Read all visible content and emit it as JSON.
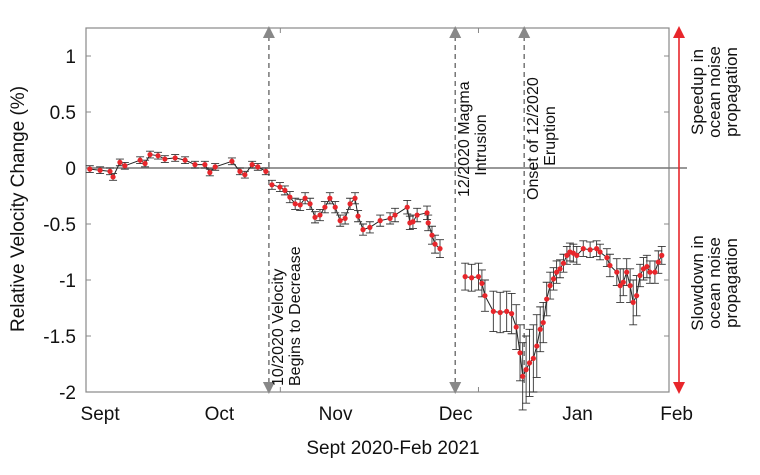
{
  "chart_data": {
    "type": "scatter",
    "title": "",
    "xlabel": "Sept 2020-Feb 2021",
    "ylabel": "Relative Velocity Change (%)",
    "xunit": "days since Sept 1 2020 (approx.)",
    "xlim": [
      0,
      153
    ],
    "ylim": [
      -2,
      1.25
    ],
    "yticks": [
      1,
      0.5,
      0,
      -0.5,
      -1,
      -1.5,
      -2
    ],
    "ytick_labels": [
      "1",
      "0.5",
      "0",
      "-0.5",
      "-1",
      "-1.5",
      "-2"
    ],
    "xticks": [
      {
        "label": "Sept",
        "x": 3.7
      },
      {
        "label": "Oct",
        "x": 35
      },
      {
        "label": "Nov",
        "x": 65.5
      },
      {
        "label": "Dec",
        "x": 97
      },
      {
        "label": "Jan",
        "x": 129
      },
      {
        "label": "Feb",
        "x": 155
      }
    ],
    "series": [
      {
        "name": "Relative velocity change",
        "color": "#e8262b",
        "errorbar_color": "#333333",
        "x": [
          1.0,
          3.7,
          6.3,
          7.1,
          8.9,
          10.2,
          14.2,
          15.5,
          16.8,
          18.9,
          20.7,
          23.4,
          26,
          28.6,
          31.2,
          32.5,
          33.9,
          38.3,
          40.4,
          41.7,
          43.6,
          45.1,
          47.2,
          48.8,
          50.9,
          52.2,
          53.5,
          54.9,
          56.2,
          57.5,
          58.8,
          60.1,
          61.4,
          62.7,
          64.0,
          65.4,
          66.7,
          68,
          69.3,
          70.6,
          71.4,
          72.7,
          74.5,
          77.2,
          79.8,
          81.1,
          84.3,
          85.0,
          85.8,
          86.9,
          89.5,
          89.8,
          90.8,
          91.6,
          92.9,
          99.5,
          101.2,
          103,
          103.9,
          104.7,
          106.9,
          108.7,
          110.4,
          111.7,
          112.9,
          113.9,
          114.6,
          115.5,
          116.4,
          117.4,
          118.3,
          119.2,
          120,
          120.9,
          121.8,
          122.7,
          123.5,
          124.4,
          125.3,
          126.2,
          127,
          127.9,
          128.8,
          130.5,
          132.3,
          134,
          134.9,
          136.7,
          137.5,
          139.3,
          140.2,
          141,
          141.9,
          142.8,
          143.6,
          144.5,
          145.4,
          146.3,
          147.2,
          148,
          149.3,
          150.2,
          151.1
        ],
        "y": [
          -0.01,
          -0.02,
          -0.03,
          -0.08,
          0.05,
          0.02,
          0.07,
          0.04,
          0.12,
          0.11,
          0.08,
          0.09,
          0.07,
          0.03,
          0.03,
          -0.04,
          0.01,
          0.06,
          -0.03,
          -0.06,
          0.03,
          0.01,
          -0.03,
          -0.15,
          -0.17,
          -0.2,
          -0.26,
          -0.32,
          -0.33,
          -0.27,
          -0.32,
          -0.44,
          -0.42,
          -0.35,
          -0.27,
          -0.35,
          -0.47,
          -0.45,
          -0.32,
          -0.27,
          -0.43,
          -0.55,
          -0.53,
          -0.47,
          -0.45,
          -0.42,
          -0.35,
          -0.49,
          -0.48,
          -0.42,
          -0.4,
          -0.49,
          -0.6,
          -0.68,
          -0.72,
          -0.97,
          -0.98,
          -0.97,
          -1.03,
          -1.14,
          -1.28,
          -1.29,
          -1.28,
          -1.3,
          -1.42,
          -1.65,
          -1.86,
          -1.8,
          -1.74,
          -1.7,
          -1.59,
          -1.44,
          -1.38,
          -1.17,
          -1.05,
          -0.99,
          -0.93,
          -0.9,
          -0.85,
          -0.78,
          -0.75,
          -0.76,
          -0.78,
          -0.72,
          -0.73,
          -0.72,
          -0.75,
          -0.8,
          -0.87,
          -0.93,
          -1.05,
          -1.02,
          -0.93,
          -1.05,
          -1.2,
          -1.14,
          -0.96,
          -0.9,
          -0.88,
          -0.93,
          -0.93,
          -0.84,
          -0.78
        ],
        "err": [
          0.03,
          0.03,
          0.03,
          0.03,
          0.03,
          0.03,
          0.03,
          0.03,
          0.03,
          0.03,
          0.03,
          0.03,
          0.03,
          0.03,
          0.03,
          0.03,
          0.03,
          0.03,
          0.03,
          0.03,
          0.03,
          0.03,
          0.03,
          0.04,
          0.04,
          0.04,
          0.05,
          0.05,
          0.05,
          0.05,
          0.05,
          0.05,
          0.05,
          0.05,
          0.05,
          0.05,
          0.05,
          0.05,
          0.05,
          0.05,
          0.05,
          0.05,
          0.05,
          0.05,
          0.05,
          0.06,
          0.06,
          0.06,
          0.06,
          0.06,
          0.06,
          0.07,
          0.08,
          0.08,
          0.08,
          0.12,
          0.12,
          0.12,
          0.12,
          0.14,
          0.18,
          0.18,
          0.18,
          0.18,
          0.2,
          0.25,
          0.3,
          0.3,
          0.3,
          0.3,
          0.28,
          0.2,
          0.18,
          0.15,
          0.12,
          0.1,
          0.1,
          0.08,
          0.08,
          0.08,
          0.08,
          0.08,
          0.08,
          0.07,
          0.07,
          0.07,
          0.07,
          0.08,
          0.1,
          0.12,
          0.15,
          0.12,
          0.12,
          0.15,
          0.2,
          0.18,
          0.1,
          0.1,
          0.1,
          0.1,
          0.1,
          0.1,
          0.08
        ]
      }
    ],
    "events": [
      {
        "x": 48,
        "lines": [
          "10/2020 Velocity",
          "Begins to Decrease"
        ],
        "text_at": "bottom"
      },
      {
        "x": 96.9,
        "lines": [
          "12/2020 Magma",
          "Intrusion"
        ],
        "text_at": "top"
      },
      {
        "x": 115,
        "lines": [
          "Onset of 12/2020",
          "Eruption"
        ],
        "text_at": "top"
      }
    ],
    "reference_line_y": 0,
    "side_annotations": {
      "upper": [
        "Speedup in",
        "ocean noise",
        "propagation"
      ],
      "lower": [
        "Slowdown in",
        "ocean noise",
        "propagation"
      ],
      "arrow_color": "#e8262b"
    }
  }
}
